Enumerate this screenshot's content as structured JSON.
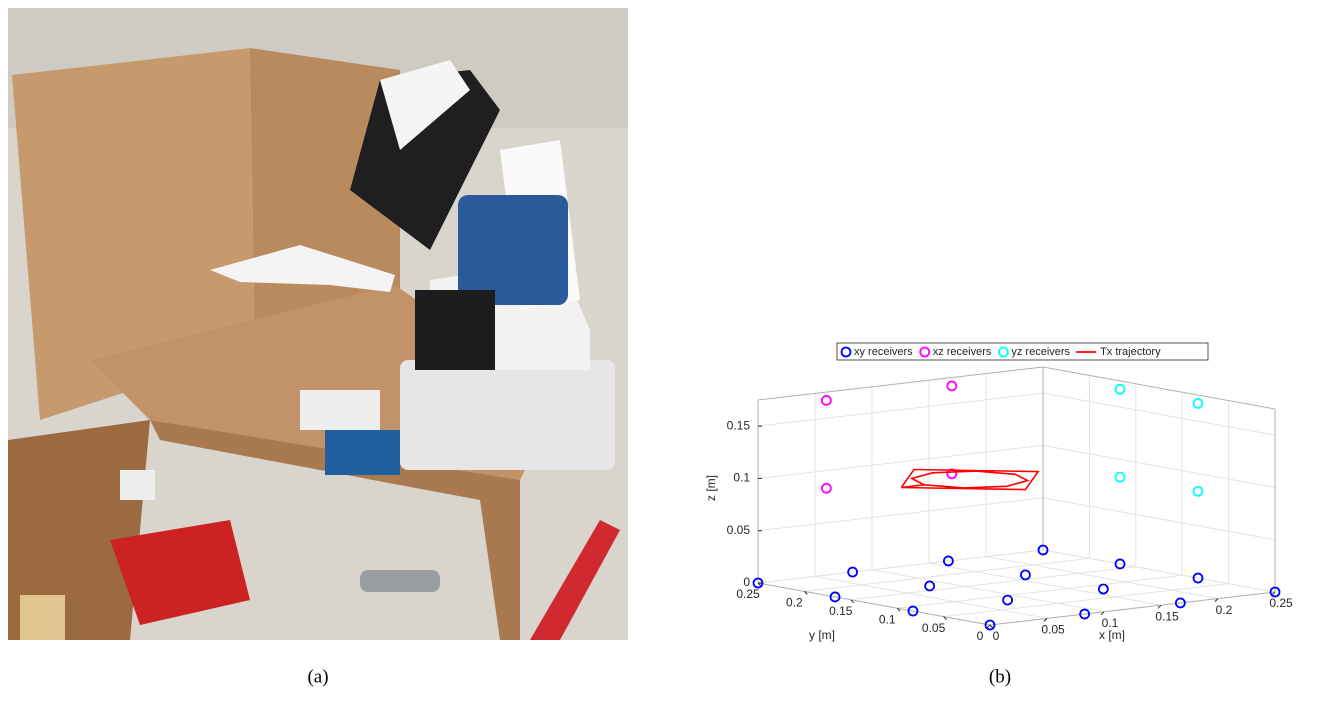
{
  "panel_a": {
    "label": "(a)"
  },
  "chart_data": {
    "type": "scatter3d",
    "label": "(b)",
    "xlabel": "x [m]",
    "ylabel": "y [m]",
    "zlabel": "z [m]",
    "xlim": [
      0,
      0.25
    ],
    "ylim": [
      0,
      0.25
    ],
    "zlim": [
      0,
      0.175
    ],
    "xticks": [
      0,
      0.05,
      0.1,
      0.15,
      0.2,
      0.25
    ],
    "yticks": [
      0,
      0.05,
      0.1,
      0.15,
      0.2,
      0.25
    ],
    "zticks": [
      0,
      0.05,
      0.1,
      0.15
    ],
    "grid": true,
    "legend": "top",
    "series": [
      {
        "name": "xy receivers",
        "color": "#0000ff",
        "mode": "markers",
        "x": [
          0,
          0,
          0,
          0,
          0.083,
          0.083,
          0.083,
          0.083,
          0.167,
          0.167,
          0.167,
          0.167,
          0.25,
          0.25,
          0.25,
          0.25
        ],
        "y": [
          0,
          0.083,
          0.167,
          0.25,
          0,
          0.083,
          0.167,
          0.25,
          0,
          0.083,
          0.167,
          0.25,
          0,
          0.083,
          0.167,
          0.25
        ],
        "z": [
          0,
          0,
          0,
          0,
          0,
          0,
          0,
          0,
          0,
          0,
          0,
          0,
          0,
          0,
          0,
          0
        ]
      },
      {
        "name": "xz receivers",
        "color": "#ff00ff",
        "mode": "markers",
        "x": [
          0.06,
          0.17,
          0.06,
          0.17
        ],
        "y": [
          0.25,
          0.25,
          0.25,
          0.25
        ],
        "z": [
          0.167,
          0.167,
          0.083,
          0.083
        ]
      },
      {
        "name": "yz receivers",
        "color": "#00ffff",
        "mode": "markers",
        "x": [
          0.25,
          0.25,
          0.25,
          0.25
        ],
        "y": [
          0.167,
          0.083,
          0.167,
          0.083
        ],
        "z": [
          0.167,
          0.167,
          0.083,
          0.083
        ]
      },
      {
        "name": "Tx trajectory",
        "color": "#ff0000",
        "mode": "line",
        "x": [
          0.05,
          0.11,
          0.17,
          0.11,
          0.05,
          0.07,
          0.082,
          0.11,
          0.138,
          0.15,
          0.138,
          0.11,
          0.082,
          0.07
        ],
        "y": [
          0.157,
          0.217,
          0.157,
          0.097,
          0.157,
          0.157,
          0.185,
          0.197,
          0.185,
          0.157,
          0.129,
          0.117,
          0.129,
          0.157
        ],
        "z": [
          0.1,
          0.1,
          0.1,
          0.1,
          0.1,
          0.1,
          0.1,
          0.1,
          0.1,
          0.1,
          0.1,
          0.1,
          0.1,
          0.1
        ]
      }
    ]
  }
}
